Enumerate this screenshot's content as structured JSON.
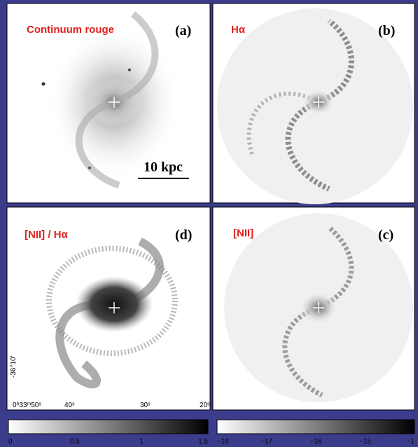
{
  "panels": [
    {
      "title": "Continuum rouge",
      "label": "(a)"
    },
    {
      "title": "Hα",
      "label": "(b)"
    },
    {
      "title": "[NII] / Hα",
      "label": "(d)"
    },
    {
      "title": "[NII]",
      "label": "(c)"
    }
  ],
  "scale_bar": "10 kpc",
  "x_axis_labels": [
    "0ʰ33ᵐ50ˢ",
    "40ˢ",
    "30ˢ",
    "20ˢ"
  ],
  "y_axis_labels": [
    "-36°10'"
  ],
  "colorbars": [
    {
      "ticks": [
        "0",
        "0.5",
        "1",
        "1.5"
      ]
    },
    {
      "ticks": [
        "−18",
        "−17",
        "−16",
        "−15",
        "−1"
      ]
    }
  ]
}
